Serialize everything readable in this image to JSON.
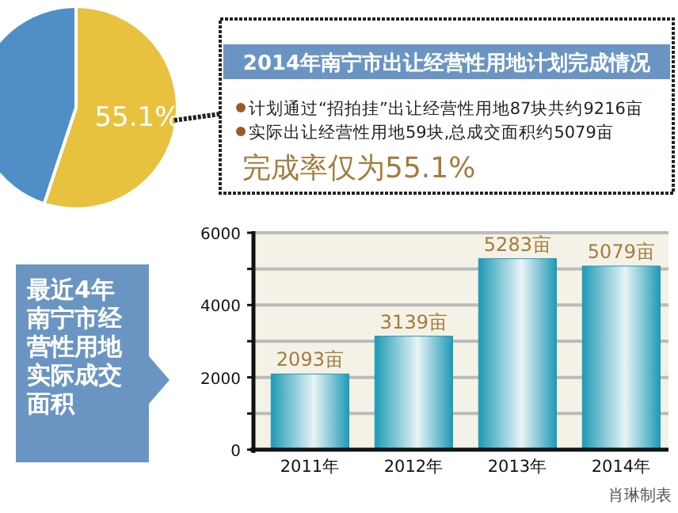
{
  "chart_data": [
    {
      "type": "pie",
      "title": "2014年南宁市出让经营性用地计划完成情况",
      "categories": [
        null,
        null
      ],
      "values": [
        55.1,
        44.9
      ],
      "colors": [
        "#e8c23e",
        "#4f8fc6"
      ],
      "value_labels": [
        "55.1%",
        null
      ],
      "annotations": [
        "计划通过“招拍挂”出让经营性用地87块共约9216亩",
        "实际出让经营性用地59块,总成交面积约5079亩",
        "完成率仅为55.1%"
      ]
    },
    {
      "type": "bar",
      "title": "最近4年南宁市经营性用地实际成交面积",
      "categories": [
        "2011年",
        "2012年",
        "2013年",
        "2014年"
      ],
      "values": [
        2093,
        3139,
        5283,
        5079
      ],
      "color": "#1e9ab6",
      "value_labels": [
        "2093亩",
        "3139亩",
        "5283亩",
        "5079亩"
      ],
      "ylim": [
        0,
        6000
      ],
      "yticks": [
        0,
        {
          "value": 1000,
          "label": null
        },
        2000,
        {
          "value": 3000,
          "label": null
        },
        4000,
        {
          "value": 5000,
          "label": null
        },
        6000
      ],
      "grid": "y",
      "annotations": [
        "肖琳制表"
      ]
    }
  ]
}
